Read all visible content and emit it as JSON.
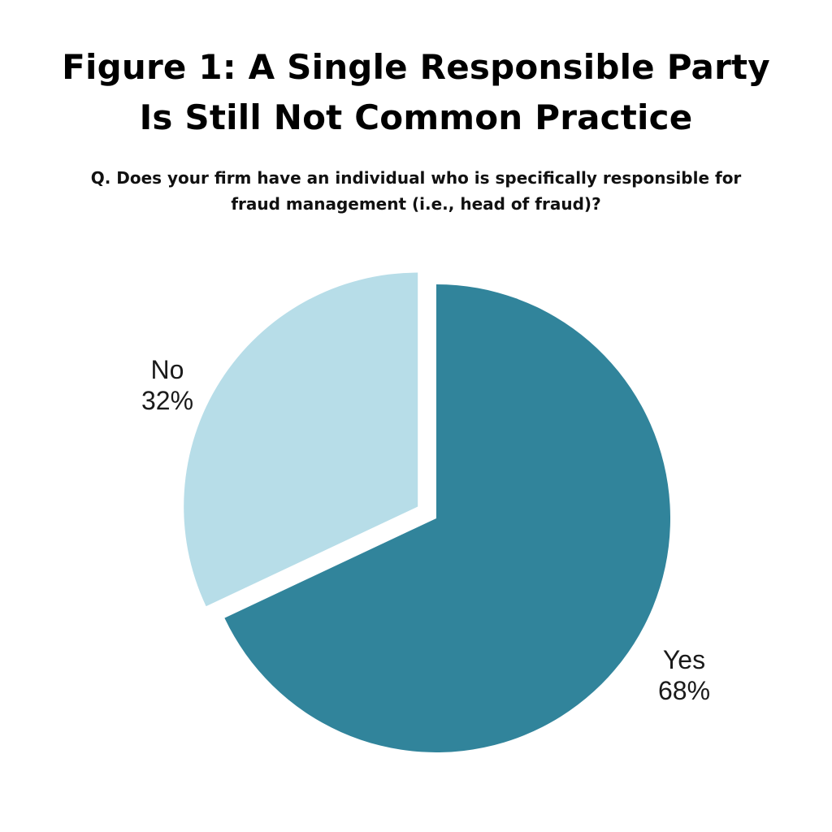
{
  "chart_data": {
    "type": "pie",
    "title": [
      "Figure 1: A Single Responsible Party",
      "Is Still Not Common Practice"
    ],
    "subtitle": [
      "Q. Does your firm have an individual who is specifically responsible for",
      "fraud management (i.e., head of fraud)?"
    ],
    "slices": [
      {
        "category": "Yes",
        "value": 68,
        "value_label": "68%",
        "color": "#31849b",
        "exploded": false
      },
      {
        "category": "No",
        "value": 32,
        "value_label": "32%",
        "color": "#b7dde8",
        "exploded": true
      }
    ],
    "legend": "none"
  }
}
